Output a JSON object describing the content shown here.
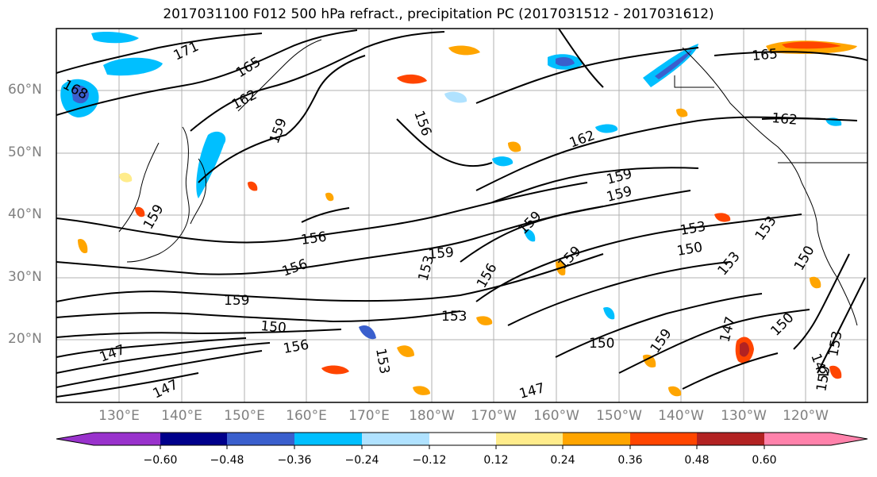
{
  "title": "2017031100 F012 500 hPa refract., precipitation PC (2017031512 - 2017031612)",
  "latitude_labels": [
    "60°N",
    "50°N",
    "40°N",
    "30°N",
    "20°N"
  ],
  "longitude_labels": [
    "130°E",
    "140°E",
    "150°E",
    "160°E",
    "170°E",
    "180°W",
    "170°W",
    "160°W",
    "150°W",
    "140°W",
    "130°W",
    "120°W"
  ],
  "contour_labels": [
    "171",
    "165",
    "168",
    "162",
    "156",
    "159",
    "165",
    "162",
    "156",
    "159",
    "159",
    "156",
    "159",
    "153",
    "156",
    "159",
    "153",
    "159",
    "153",
    "150",
    "150",
    "147",
    "153",
    "156",
    "147",
    "150",
    "159",
    "147",
    "150",
    "153",
    "159",
    "153",
    "153",
    "147",
    "162",
    "159",
    "147",
    "159",
    "150"
  ],
  "colorbar": {
    "ticks": [
      "−0.60",
      "−0.48",
      "−0.36",
      "−0.24",
      "−0.12",
      "0.12",
      "0.24",
      "0.36",
      "0.48",
      "0.60"
    ],
    "colors": [
      "#9932cc",
      "#00008b",
      "#3a5fcd",
      "#00bfff",
      "#b0e2ff",
      "#ffffff",
      "#ffec8b",
      "#ffa500",
      "#ff4500",
      "#b22222",
      "#ff82ab"
    ]
  }
}
